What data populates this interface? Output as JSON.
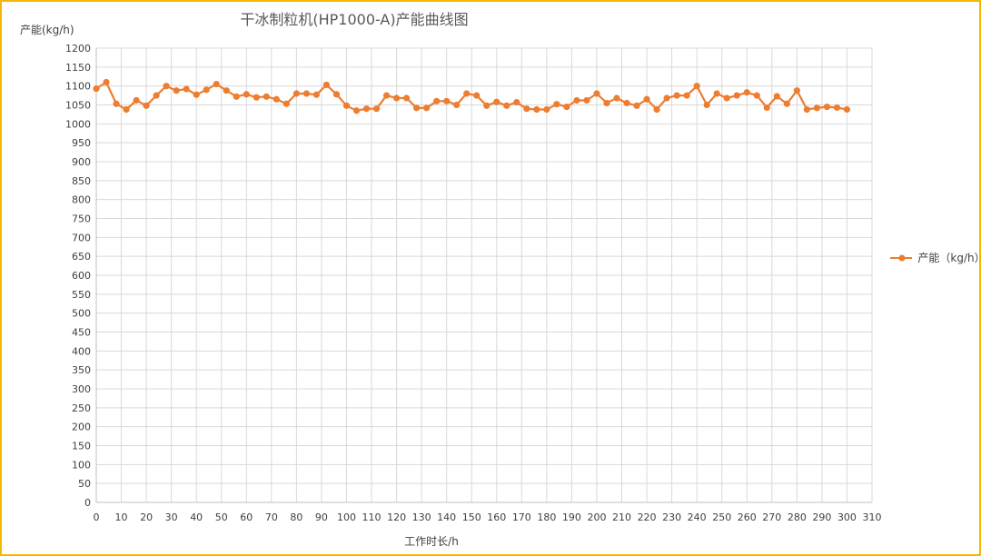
{
  "chart_data": {
    "type": "line",
    "title": "干冰制粒机(HP1000-A)产能曲线图",
    "ylabel": "产能(kg/h)",
    "xlabel": "工作时长/h",
    "xlim": [
      0,
      310
    ],
    "ylim": [
      0,
      1200
    ],
    "xticks": [
      0,
      10,
      20,
      30,
      40,
      50,
      60,
      70,
      80,
      90,
      100,
      110,
      120,
      130,
      140,
      150,
      160,
      170,
      180,
      190,
      200,
      210,
      220,
      230,
      240,
      250,
      260,
      270,
      280,
      290,
      300,
      310
    ],
    "yticks": [
      0,
      50,
      100,
      150,
      200,
      250,
      300,
      350,
      400,
      450,
      500,
      550,
      600,
      650,
      700,
      750,
      800,
      850,
      900,
      950,
      1000,
      1050,
      1100,
      1150,
      1200
    ],
    "grid": true,
    "legend_position": "right",
    "series": [
      {
        "name": "产能（kg/h）",
        "color": "#ed7d31",
        "x": [
          0,
          4,
          8,
          12,
          16,
          20,
          24,
          28,
          32,
          36,
          40,
          44,
          48,
          52,
          56,
          60,
          64,
          68,
          72,
          76,
          80,
          84,
          88,
          92,
          96,
          100,
          104,
          108,
          112,
          116,
          120,
          124,
          128,
          132,
          136,
          140,
          144,
          148,
          152,
          156,
          160,
          164,
          168,
          172,
          176,
          180,
          184,
          188,
          192,
          196,
          200,
          204,
          208,
          212,
          216,
          220,
          224,
          228,
          232,
          236,
          240,
          244,
          248,
          252,
          256,
          260,
          264,
          268,
          272,
          276,
          280,
          284,
          288,
          292,
          296,
          300
        ],
        "values": [
          1093,
          1110,
          1053,
          1038,
          1062,
          1048,
          1075,
          1100,
          1088,
          1092,
          1077,
          1090,
          1105,
          1088,
          1072,
          1078,
          1070,
          1072,
          1065,
          1053,
          1080,
          1080,
          1077,
          1103,
          1078,
          1048,
          1035,
          1040,
          1040,
          1075,
          1068,
          1068,
          1042,
          1042,
          1060,
          1060,
          1050,
          1080,
          1075,
          1048,
          1058,
          1048,
          1057,
          1040,
          1038,
          1038,
          1052,
          1045,
          1062,
          1062,
          1080,
          1055,
          1068,
          1055,
          1048,
          1065,
          1038,
          1068,
          1075,
          1075,
          1100,
          1050,
          1080,
          1068,
          1075,
          1083,
          1075,
          1043,
          1073,
          1053,
          1088,
          1038,
          1042,
          1045,
          1043,
          1038
        ]
      }
    ]
  }
}
